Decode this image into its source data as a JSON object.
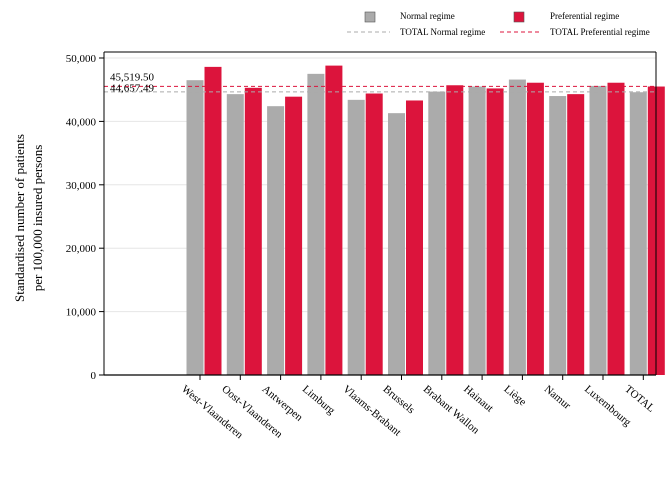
{
  "chart_data": {
    "type": "bar",
    "title": "",
    "xlabel": "",
    "ylabel": [
      "Standardised number of patients",
      "per 100,000 insured persons"
    ],
    "ylim": [
      0,
      50000
    ],
    "yticks": [
      0,
      10000,
      20000,
      30000,
      40000,
      50000
    ],
    "ytick_labels": [
      "0",
      "10,000",
      "20,000",
      "30,000",
      "40,000",
      "50,000"
    ],
    "grid": true,
    "legend_position": "top-right",
    "categories": [
      "West-Vlaanderen",
      "Oost-Vlaanderen",
      "Antwerpen",
      "Limburg",
      "Vlaams-Brabant",
      "Brussels",
      "Brabant Wallon",
      "Hainaut",
      "Liège",
      "Namur",
      "Luxembourg",
      "TOTAL"
    ],
    "series": [
      {
        "name": "Normal regime",
        "color": "#ababab",
        "values": [
          46500,
          44300,
          42400,
          47500,
          43400,
          41300,
          44700,
          45500,
          46600,
          44000,
          45600,
          44600
        ]
      },
      {
        "name": "Preferential regime",
        "color": "#dc143c",
        "values": [
          48600,
          45300,
          43900,
          48800,
          44400,
          43300,
          45700,
          45200,
          46100,
          44300,
          46100,
          45500
        ]
      }
    ],
    "reference_lines": [
      {
        "name": "TOTAL Normal regime",
        "color": "#ababab",
        "value": 44657.49,
        "label": "44,657.49"
      },
      {
        "name": "TOTAL Preferential regime",
        "color": "#dc143c",
        "value": 45519.5,
        "label": "45,519.50"
      }
    ]
  }
}
